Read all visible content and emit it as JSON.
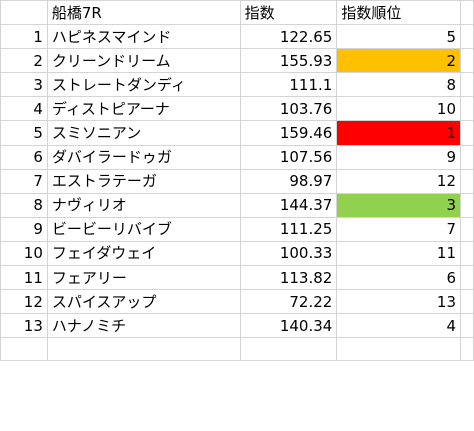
{
  "header": {
    "corner": "",
    "name": "船橋7R",
    "index": "指数",
    "rank": "指数順位"
  },
  "colors": {
    "rank_1": "#ff0000",
    "rank_2": "#ffc000",
    "rank_3": "#92d050",
    "gridline": "#d4d4d4"
  },
  "rows": [
    {
      "num": "1",
      "name": "ハピネスマインド",
      "index": "122.65",
      "rank": "5",
      "highlight": ""
    },
    {
      "num": "2",
      "name": "クリーンドリーム",
      "index": "155.93",
      "rank": "2",
      "highlight": "#ffc000"
    },
    {
      "num": "3",
      "name": "ストレートダンディ",
      "index": "111.1",
      "rank": "8",
      "highlight": ""
    },
    {
      "num": "4",
      "name": "ディストピアーナ",
      "index": "103.76",
      "rank": "10",
      "highlight": ""
    },
    {
      "num": "5",
      "name": "スミソニアン",
      "index": "159.46",
      "rank": "1",
      "highlight": "#ff0000"
    },
    {
      "num": "6",
      "name": "ダバイラードゥガ",
      "index": "107.56",
      "rank": "9",
      "highlight": ""
    },
    {
      "num": "7",
      "name": "エストラテーガ",
      "index": "98.97",
      "rank": "12",
      "highlight": ""
    },
    {
      "num": "8",
      "name": "ナヴィリオ",
      "index": "144.37",
      "rank": "3",
      "highlight": "#92d050"
    },
    {
      "num": "9",
      "name": "ビービーリバイブ",
      "index": "111.25",
      "rank": "7",
      "highlight": ""
    },
    {
      "num": "10",
      "name": "フェイダウェイ",
      "index": "100.33",
      "rank": "11",
      "highlight": ""
    },
    {
      "num": "11",
      "name": "フェアリー",
      "index": "113.82",
      "rank": "6",
      "highlight": ""
    },
    {
      "num": "12",
      "name": "スパイスアップ",
      "index": "72.22",
      "rank": "13",
      "highlight": ""
    },
    {
      "num": "13",
      "name": "ハナノミチ",
      "index": "140.34",
      "rank": "4",
      "highlight": ""
    }
  ]
}
